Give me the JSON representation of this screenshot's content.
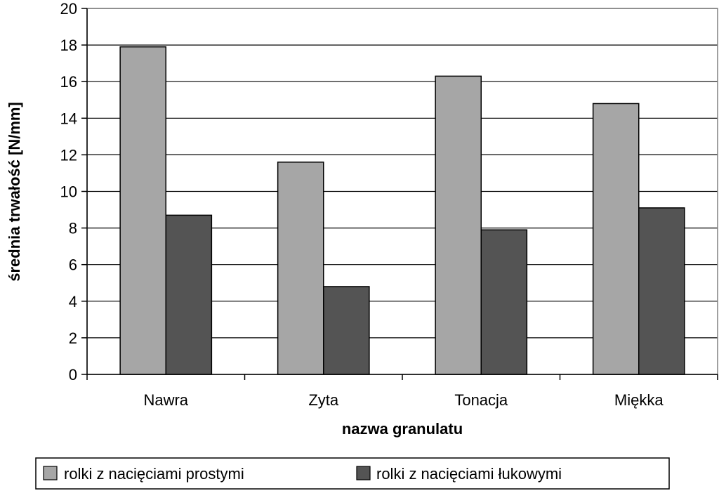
{
  "chart_data": {
    "type": "bar",
    "title": "",
    "xlabel": "nazwa granulatu",
    "ylabel": "średnia trwałość [N/mm]",
    "categories": [
      "Nawra",
      "Zyta",
      "Tonacja",
      "Miękka"
    ],
    "series": [
      {
        "name": "rolki z nacięciami prostymi",
        "color": "#a6a6a6",
        "values": [
          17.9,
          11.6,
          16.3,
          14.8
        ]
      },
      {
        "name": "rolki z nacięciami łukowymi",
        "color": "#545454",
        "values": [
          8.7,
          4.8,
          7.9,
          9.1
        ]
      }
    ],
    "ylim": [
      0,
      20
    ],
    "yticks": [
      "0",
      "2",
      "4",
      "6",
      "8",
      "10",
      "12",
      "14",
      "16",
      "18",
      "20"
    ],
    "grid": true,
    "legend_position": "bottom"
  }
}
